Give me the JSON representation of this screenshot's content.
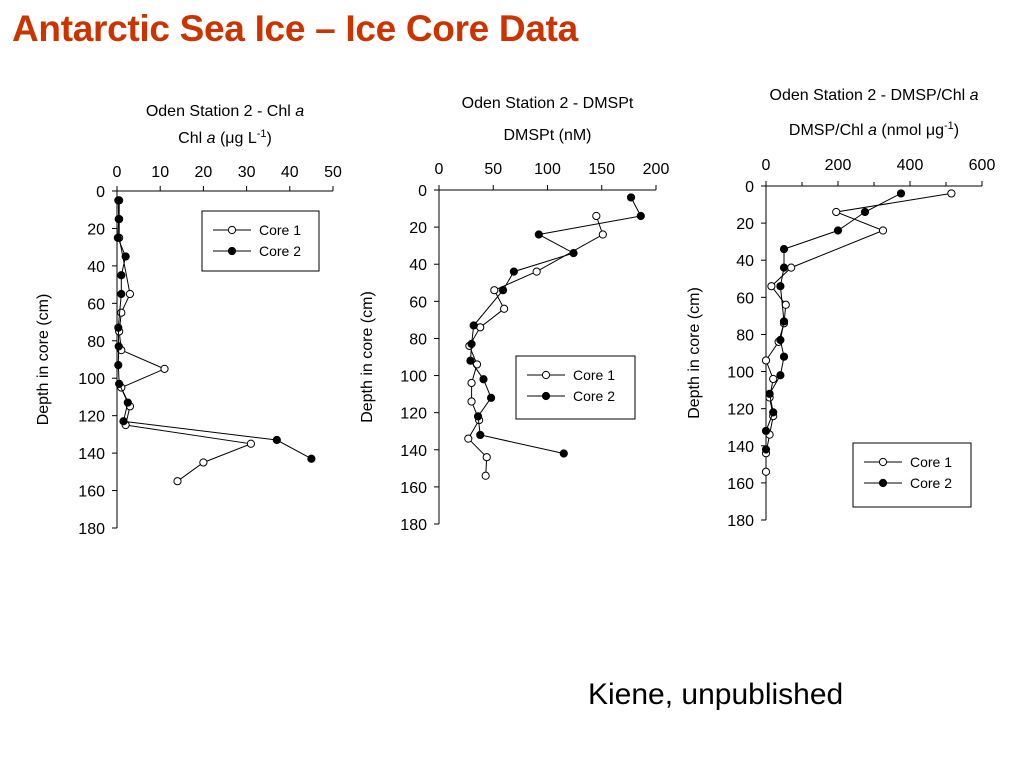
{
  "slide": {
    "title": "Antarctic Sea Ice – Ice Core Data",
    "title_color": "#cc3300",
    "credit": "Kiene, unpublished"
  },
  "chart_data": [
    {
      "type": "scatter",
      "title": "Oden Station 2 - Chl a",
      "title_text": "Oden Station 2 - Chl ",
      "title_italic": "a",
      "xlabel": "Chl a (μg L-1)",
      "xlabel_parts": [
        {
          "t": "Chl ",
          "style": "normal"
        },
        {
          "t": "a",
          "style": "italic"
        },
        {
          "t": " (",
          "style": "normal"
        },
        {
          "t": "μ",
          "style": "normal"
        },
        {
          "t": "g L",
          "style": "normal"
        },
        {
          "t": "-1",
          "style": "sup"
        },
        {
          "t": ")",
          "style": "normal"
        }
      ],
      "ylabel": "Depth in core (cm)",
      "xlim": [
        0,
        50
      ],
      "ylim": [
        0,
        180
      ],
      "y_inverted": true,
      "x_axis_position": "top",
      "xticks": [
        0,
        10,
        20,
        30,
        40,
        50
      ],
      "xticks_minor": [],
      "yticks": [
        0,
        20,
        40,
        60,
        80,
        100,
        120,
        140,
        160,
        180
      ],
      "grid": false,
      "legend": {
        "position": "top-right",
        "entries": [
          "Core 1",
          "Core 2"
        ]
      },
      "series": [
        {
          "name": "Core 1",
          "marker": "open-circle",
          "x": [
            0.5,
            0.5,
            0.5,
            3,
            1,
            0.5,
            1,
            11,
            1,
            3,
            2,
            31,
            20,
            14
          ],
          "y": [
            5,
            15,
            25,
            55,
            65,
            75,
            85,
            95,
            105,
            115,
            125,
            135,
            145,
            155
          ]
        },
        {
          "name": "Core 2",
          "marker": "filled-circle",
          "x": [
            0.3,
            0.4,
            0.2,
            2,
            1,
            1,
            0.3,
            0.4,
            0.3,
            0.5,
            2.5,
            1.5,
            37,
            45
          ],
          "y": [
            5,
            15,
            25,
            35,
            45,
            55,
            73,
            83,
            93,
            103,
            113,
            123,
            133,
            143
          ]
        }
      ]
    },
    {
      "type": "scatter",
      "title": "Oden Station 2 - DMSPt",
      "title_text": "Oden Station 2 - DMSPt",
      "title_italic": "",
      "xlabel": "DMSPt (nM)",
      "xlabel_parts": [
        {
          "t": "DMSPt (nM)",
          "style": "normal"
        }
      ],
      "ylabel": "Depth in core (cm)",
      "xlim": [
        0,
        200
      ],
      "ylim": [
        0,
        180
      ],
      "y_inverted": true,
      "x_axis_position": "top",
      "xticks": [
        0,
        50,
        100,
        150,
        200
      ],
      "xticks_minor": [],
      "yticks": [
        0,
        20,
        40,
        60,
        80,
        100,
        120,
        140,
        160,
        180
      ],
      "grid": false,
      "legend": {
        "position": "bottom-right",
        "entries": [
          "Core 1",
          "Core 2"
        ]
      },
      "series": [
        {
          "name": "Core 1",
          "marker": "open-circle",
          "x": [
            145,
            151,
            90,
            51,
            60,
            38,
            28,
            35,
            30,
            30,
            37,
            27,
            44,
            43
          ],
          "y": [
            14,
            24,
            44,
            54,
            64,
            74,
            84,
            94,
            104,
            114,
            124,
            134,
            144,
            154
          ]
        },
        {
          "name": "Core 2",
          "marker": "filled-circle",
          "x": [
            177,
            186,
            92,
            124,
            69,
            59,
            32,
            30,
            29,
            41,
            48,
            36,
            38,
            115
          ],
          "y": [
            4,
            14,
            24,
            34,
            44,
            54,
            73,
            83,
            92,
            102,
            112,
            122,
            132,
            142
          ]
        }
      ]
    },
    {
      "type": "scatter",
      "title": "Oden Station 2 - DMSP/Chl a",
      "title_text": "Oden Station 2 - DMSP/Chl ",
      "title_italic": "a",
      "xlabel": "DMSP/Chl a (nmol μg-1)",
      "xlabel_parts": [
        {
          "t": "DMSP/Chl ",
          "style": "normal"
        },
        {
          "t": "a",
          "style": "italic"
        },
        {
          "t": " (nmol ",
          "style": "normal"
        },
        {
          "t": "μ",
          "style": "normal"
        },
        {
          "t": "g",
          "style": "normal"
        },
        {
          "t": "-1",
          "style": "sup"
        },
        {
          "t": ")",
          "style": "normal"
        }
      ],
      "ylabel": "Depth in core (cm)",
      "xlim": [
        0,
        600
      ],
      "ylim": [
        0,
        180
      ],
      "y_inverted": true,
      "x_axis_position": "top",
      "xticks": [
        0,
        200,
        400,
        600
      ],
      "xticks_minor": [
        100,
        300,
        500
      ],
      "yticks": [
        0,
        20,
        40,
        60,
        80,
        100,
        120,
        140,
        160,
        180
      ],
      "grid": false,
      "legend": {
        "position": "bottom-right",
        "entries": [
          "Core 1",
          "Core 2"
        ]
      },
      "series": [
        {
          "name": "Core 1",
          "marker": "open-circle",
          "x": [
            515,
            195,
            325,
            70,
            15,
            55,
            50,
            35,
            0,
            20,
            10,
            20,
            10,
            0,
            0
          ],
          "y": [
            4,
            14,
            24,
            44,
            54,
            64,
            74,
            84,
            94,
            104,
            114,
            124,
            134,
            144,
            154
          ]
        },
        {
          "name": "Core 2",
          "marker": "filled-circle",
          "x": [
            375,
            275,
            200,
            50,
            50,
            40,
            50,
            40,
            50,
            40,
            10,
            20,
            0,
            0
          ],
          "y": [
            4,
            14,
            24,
            34,
            44,
            54,
            73,
            83,
            92,
            102,
            112,
            122,
            132,
            142
          ]
        }
      ]
    }
  ]
}
